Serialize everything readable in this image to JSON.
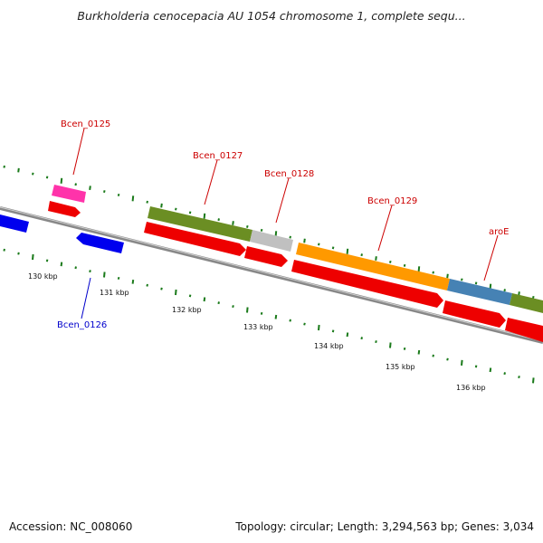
{
  "title": "Burkholderia cenocepacia AU 1054 chromosome 1, complete sequ...",
  "footer": {
    "accession": "Accession: NC_008060",
    "summary": "Topology: circular; Length: 3,294,563 bp; Genes: 3,034"
  },
  "colors": {
    "backbone": "#888888",
    "tick": "#1a7a1a",
    "forward_label": "#cc0000",
    "reverse_label": "#0000cc",
    "cds_red": "#ee0000",
    "gene_blue": "#0000ee",
    "gene_pink": "#ff33aa",
    "olive": "#6b8e23",
    "grey": "#c0c0c0",
    "orange": "#ff9900",
    "steelblue": "#4682b4"
  },
  "tick_labels": [
    "130 kbp",
    "131 kbp",
    "132 kbp",
    "133 kbp",
    "134 kbp",
    "135 kbp",
    "136 kbp"
  ],
  "genes": [
    {
      "id": "Bcen_0125",
      "strand": "forward",
      "label": "Bcen_0125"
    },
    {
      "id": "Bcen_0126",
      "strand": "reverse",
      "label": "Bcen_0126"
    },
    {
      "id": "Bcen_0127",
      "strand": "forward",
      "label": "Bcen_0127"
    },
    {
      "id": "Bcen_0128",
      "strand": "forward",
      "label": "Bcen_0128"
    },
    {
      "id": "Bcen_0129",
      "strand": "forward",
      "label": "Bcen_0129"
    },
    {
      "id": "aroE",
      "strand": "forward",
      "label": "aroE"
    }
  ]
}
